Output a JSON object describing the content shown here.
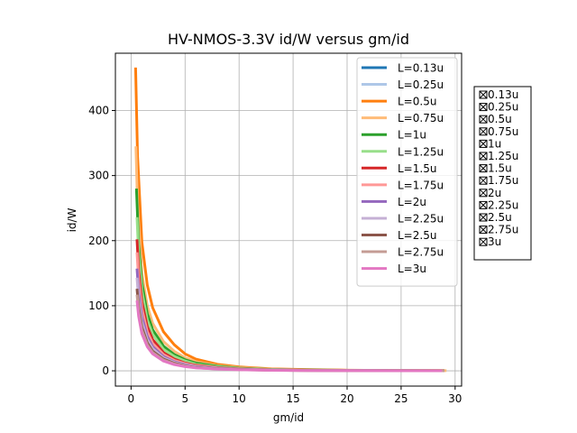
{
  "chart_data": {
    "type": "line",
    "title": "HV-NMOS-3.3V id/W versus gm/id",
    "xlabel": "gm/id",
    "ylabel": "id/W",
    "xlim": [
      -1.45,
      30.6
    ],
    "ylim": [
      -23.5,
      488
    ],
    "xticks": [
      0,
      5,
      10,
      15,
      20,
      25,
      30
    ],
    "yticks": [
      0,
      100,
      200,
      300,
      400
    ],
    "grid": true,
    "legend_position": "top-right",
    "series": [
      {
        "name": "L=0.13u",
        "color": "#1f77b4",
        "x": [],
        "y": []
      },
      {
        "name": "L=0.25u",
        "color": "#aec7e8",
        "x": [],
        "y": []
      },
      {
        "name": "L=0.5u",
        "color": "#ff7f0e",
        "x": [
          0.42,
          0.6,
          1,
          1.5,
          2,
          3,
          4,
          5,
          6,
          8,
          10,
          13,
          16,
          20,
          25,
          29
        ],
        "y": [
          466,
          330,
          198,
          132,
          97,
          60,
          40,
          26,
          18,
          10,
          6,
          3,
          2,
          1,
          0.5,
          0.2
        ]
      },
      {
        "name": "L=0.75u",
        "color": "#ffbb78",
        "x": [
          0.45,
          0.6,
          1,
          1.5,
          2,
          3,
          4,
          5,
          6,
          8,
          10,
          13,
          16,
          20,
          25,
          29.2
        ],
        "y": [
          345,
          255,
          150,
          100,
          73,
          45,
          30,
          20,
          14,
          8,
          5,
          2.5,
          1.5,
          0.8,
          0.4,
          0.2
        ]
      },
      {
        "name": "L=1u",
        "color": "#2ca02c",
        "x": [
          0.5,
          0.7,
          1,
          1.5,
          2,
          3,
          4,
          5,
          6,
          8,
          10,
          13,
          16,
          20,
          25,
          29
        ],
        "y": [
          280,
          195,
          135,
          88,
          63,
          38,
          25,
          17,
          12,
          7,
          4,
          2,
          1.2,
          0.7,
          0.3,
          0.2
        ]
      },
      {
        "name": "L=1.25u",
        "color": "#98df8a",
        "x": [
          0.55,
          0.7,
          1,
          1.5,
          2,
          3,
          4,
          5,
          6,
          8,
          10,
          13,
          16,
          20,
          25,
          29
        ],
        "y": [
          236,
          180,
          122,
          78,
          56,
          33,
          22,
          15,
          10,
          6,
          3.5,
          1.8,
          1,
          0.6,
          0.3,
          0.2
        ]
      },
      {
        "name": "L=1.5u",
        "color": "#d62728",
        "x": [
          0.55,
          0.7,
          1,
          1.5,
          2,
          3,
          4,
          5,
          6,
          8,
          10,
          13,
          16,
          20,
          25,
          29
        ],
        "y": [
          202,
          155,
          106,
          68,
          48,
          28,
          18,
          12,
          8.5,
          5,
          3,
          1.5,
          0.9,
          0.5,
          0.3,
          0.2
        ]
      },
      {
        "name": "L=1.75u",
        "color": "#ff9896",
        "x": [
          0.55,
          0.7,
          1,
          1.5,
          2,
          3,
          4,
          5,
          6,
          8,
          10,
          13,
          16,
          20,
          25,
          29
        ],
        "y": [
          182,
          140,
          95,
          60,
          42,
          25,
          16,
          11,
          7.5,
          4.5,
          2.7,
          1.4,
          0.8,
          0.5,
          0.3,
          0.2
        ]
      },
      {
        "name": "L=2u",
        "color": "#9467bd",
        "x": [
          0.55,
          0.7,
          1,
          1.5,
          2,
          3,
          4,
          5,
          6,
          8,
          10,
          13,
          16,
          20,
          25,
          29
        ],
        "y": [
          157,
          122,
          83,
          53,
          37,
          22,
          14,
          9.5,
          6.5,
          4,
          2.4,
          1.2,
          0.7,
          0.4,
          0.2,
          0.1
        ]
      },
      {
        "name": "L=2.25u",
        "color": "#c5b0d5",
        "x": [
          0.55,
          0.7,
          1,
          1.5,
          2,
          3,
          4,
          5,
          6,
          8,
          10,
          13,
          16,
          20,
          25,
          29
        ],
        "y": [
          143,
          110,
          75,
          48,
          34,
          20,
          13,
          8.5,
          6,
          3.5,
          2.1,
          1.1,
          0.6,
          0.4,
          0.2,
          0.1
        ]
      },
      {
        "name": "L=2.5u",
        "color": "#8c564b",
        "x": [
          0.55,
          0.7,
          1,
          1.5,
          2,
          3,
          4,
          5,
          6,
          8,
          10,
          13,
          16,
          20,
          25,
          29
        ],
        "y": [
          126,
          98,
          67,
          43,
          30,
          18,
          11.5,
          7.5,
          5.2,
          3.1,
          1.9,
          1,
          0.6,
          0.3,
          0.2,
          0.1
        ]
      },
      {
        "name": "L=2.75u",
        "color": "#c49c94",
        "x": [
          0.55,
          0.7,
          1,
          1.5,
          2,
          3,
          4,
          5,
          6,
          8,
          10,
          13,
          16,
          20,
          25,
          29
        ],
        "y": [
          117,
          91,
          62,
          40,
          28,
          16.5,
          10.5,
          7,
          4.8,
          2.9,
          1.7,
          0.9,
          0.5,
          0.3,
          0.2,
          0.1
        ]
      },
      {
        "name": "L=3u",
        "color": "#e377c2",
        "x": [
          0.55,
          0.7,
          1,
          1.5,
          2,
          3,
          4,
          5,
          6,
          8,
          10,
          13,
          16,
          20,
          25,
          28.8
        ],
        "y": [
          108,
          84,
          57,
          37,
          26,
          15,
          9.5,
          6.5,
          4.5,
          2.7,
          1.6,
          0.8,
          0.5,
          0.3,
          0.1,
          0.1
        ]
      }
    ]
  },
  "checkbox_panel": {
    "items": [
      "0.13u",
      "0.25u",
      "0.5u",
      "0.75u",
      "1u",
      "1.25u",
      "1.5u",
      "1.75u",
      "2u",
      "2.25u",
      "2.5u",
      "2.75u",
      "3u"
    ],
    "checked": [
      true,
      true,
      true,
      true,
      true,
      true,
      true,
      true,
      true,
      true,
      true,
      true,
      true
    ],
    "check_glyph": "⊠"
  }
}
